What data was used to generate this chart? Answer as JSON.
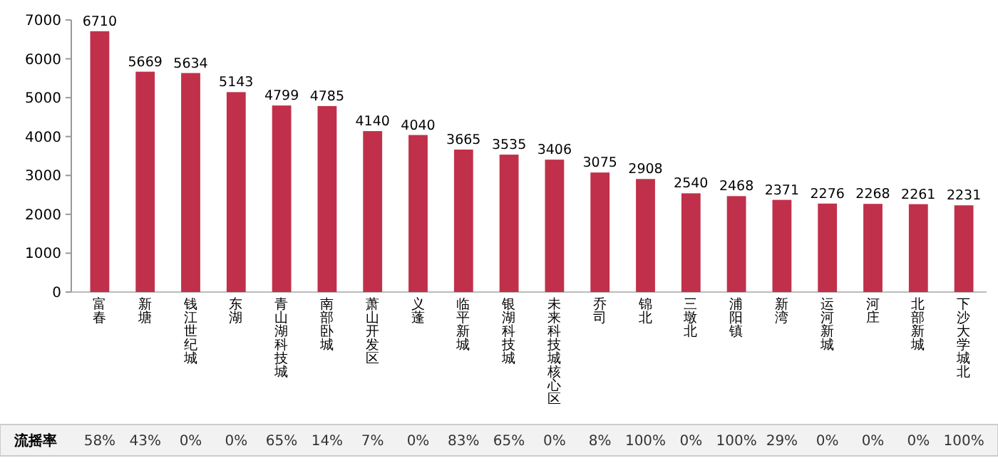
{
  "chart_data": {
    "type": "bar",
    "categories": [
      "富春",
      "新塘",
      "钱江世纪城",
      "东湖",
      "青山湖科技城",
      "南部卧城",
      "萧山开发区",
      "义蓬",
      "临平新城",
      "银湖科技城",
      "未来科技城核心区",
      "乔司",
      "锦北",
      "三墩北",
      "浦阳镇",
      "新湾",
      "运河新城",
      "河庄",
      "北部新城",
      "下沙大学城北"
    ],
    "values": [
      6710,
      5669,
      5634,
      5143,
      4799,
      4785,
      4140,
      4040,
      3665,
      3535,
      3406,
      3075,
      2908,
      2540,
      2468,
      2371,
      2276,
      2268,
      2261,
      2231
    ],
    "color": "#c0304a",
    "data_labels": true,
    "ylim": [
      0,
      7000
    ],
    "yticks": [
      0,
      1000,
      2000,
      3000,
      4000,
      5000,
      6000,
      7000
    ],
    "annotations": [
      "流摇率",
      "58%",
      "43%",
      "0%",
      "0%",
      "65%",
      "14%",
      "7%",
      "0%",
      "83%",
      "65%",
      "0%",
      "8%",
      "100%",
      "0%",
      "100%",
      "29%",
      "0%",
      "0%",
      "0%",
      "100%"
    ]
  }
}
